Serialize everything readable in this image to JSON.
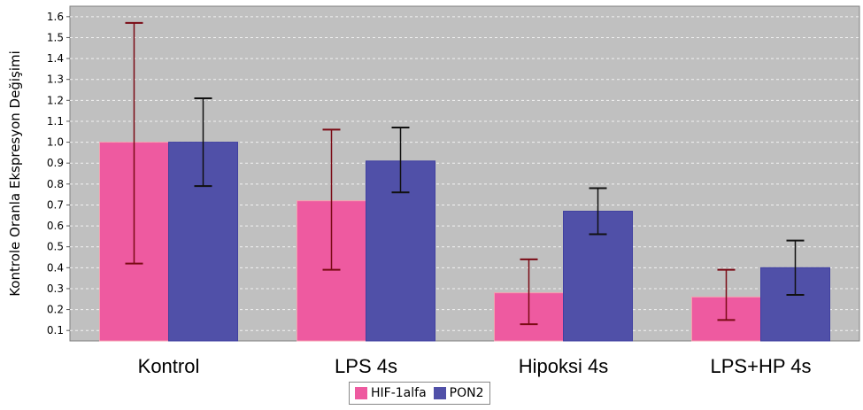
{
  "chart_data": {
    "type": "bar",
    "title": "",
    "xlabel": "",
    "ylabel": "Kontrole Oranla Ekspresyon Değişimi",
    "ylim": [
      0.05,
      1.65
    ],
    "yticks": [
      "0.1",
      "0.2",
      "0.3",
      "0.4",
      "0.5",
      "0.6",
      "0.7",
      "0.8",
      "0.9",
      "1.0",
      "1.1",
      "1.2",
      "1.3",
      "1.4",
      "1.5",
      "1.6"
    ],
    "categories": [
      "Kontrol",
      "LPS 4s",
      "Hipoksi 4s",
      "LPS+HP 4s"
    ],
    "series": [
      {
        "name": "HIF-1alfa",
        "color": "#ee5aa0",
        "values": [
          1.0,
          0.72,
          0.28,
          0.26
        ],
        "error_low": [
          0.42,
          0.39,
          0.13,
          0.15
        ],
        "error_high": [
          1.57,
          1.06,
          0.44,
          0.39
        ]
      },
      {
        "name": "PON2",
        "color": "#5050a8",
        "values": [
          1.0,
          0.91,
          0.67,
          0.4
        ],
        "error_low": [
          0.79,
          0.76,
          0.56,
          0.27
        ],
        "error_high": [
          1.21,
          1.07,
          0.78,
          0.53
        ]
      }
    ],
    "grid": true,
    "legend": "bottom-center",
    "plot_background": "#c0c0c0"
  }
}
